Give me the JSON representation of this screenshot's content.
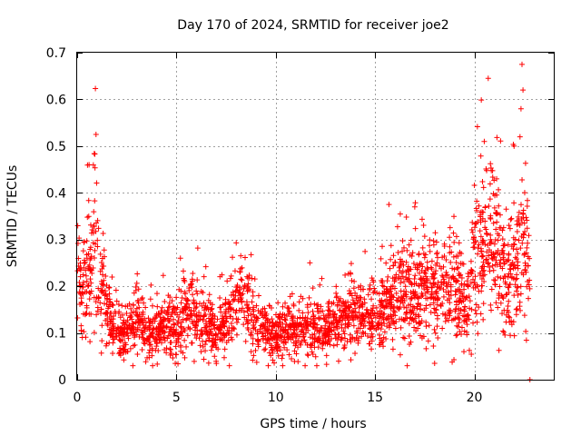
{
  "chart_data": {
    "type": "scatter",
    "title": "Day 170 of 2024, SRMTID for receiver joe2",
    "xlabel": "GPS time / hours",
    "ylabel": "SRMTID / TECUs",
    "xlim": [
      0,
      24
    ],
    "ylim": [
      0,
      0.7
    ],
    "xticks": [
      0,
      5,
      10,
      15,
      20
    ],
    "yticks": [
      0,
      0.1,
      0.2,
      0.3,
      0.4,
      0.5,
      0.6,
      0.7
    ],
    "xtick_labels": [
      "0",
      "5",
      "10",
      "15",
      "20"
    ],
    "ytick_labels": [
      "0",
      "0.1",
      "0.2",
      "0.3",
      "0.4",
      "0.5",
      "0.6",
      "0.7"
    ],
    "grid": true,
    "marker": "+",
    "color": "#ff0000",
    "series": [
      {
        "name": "SRMTID",
        "trend": {
          "x": [
            0,
            0.3,
            0.6,
            0.9,
            1.2,
            1.6,
            2.0,
            2.5,
            3.0,
            3.5,
            4.0,
            4.5,
            5.0,
            5.5,
            6.0,
            6.5,
            7.0,
            7.5,
            8.0,
            8.5,
            9.0,
            9.5,
            10.0,
            10.5,
            11.0,
            11.5,
            12.0,
            12.5,
            13.0,
            13.5,
            14.0,
            14.5,
            15.0,
            15.5,
            16.0,
            16.5,
            17.0,
            17.5,
            18.0,
            18.5,
            19.0,
            19.5,
            20.0,
            20.5,
            21.0,
            21.5,
            22.0,
            22.5,
            22.8
          ],
          "y": [
            0.22,
            0.19,
            0.24,
            0.3,
            0.2,
            0.14,
            0.1,
            0.09,
            0.13,
            0.11,
            0.1,
            0.12,
            0.11,
            0.15,
            0.14,
            0.12,
            0.1,
            0.13,
            0.16,
            0.17,
            0.12,
            0.1,
            0.09,
            0.11,
            0.1,
            0.12,
            0.11,
            0.1,
            0.12,
            0.13,
            0.14,
            0.14,
            0.13,
            0.15,
            0.18,
            0.2,
            0.18,
            0.2,
            0.19,
            0.18,
            0.2,
            0.15,
            0.26,
            0.28,
            0.3,
            0.22,
            0.24,
            0.3,
            0.25
          ]
        },
        "n_points": 2600,
        "highlights": [
          {
            "x": 0.95,
            "y": 0.525
          },
          {
            "x": 0.6,
            "y": 0.46
          },
          {
            "x": 20.7,
            "y": 0.645
          },
          {
            "x": 22.4,
            "y": 0.675
          },
          {
            "x": 22.45,
            "y": 0.62
          },
          {
            "x": 22.35,
            "y": 0.58
          },
          {
            "x": 22.3,
            "y": 0.52
          },
          {
            "x": 20.5,
            "y": 0.51
          },
          {
            "x": 22.0,
            "y": 0.5
          },
          {
            "x": 15.7,
            "y": 0.375
          },
          {
            "x": 17.0,
            "y": 0.37
          },
          {
            "x": 18.0,
            "y": 0.035
          },
          {
            "x": 22.8,
            "y": 0.0
          }
        ]
      }
    ]
  }
}
